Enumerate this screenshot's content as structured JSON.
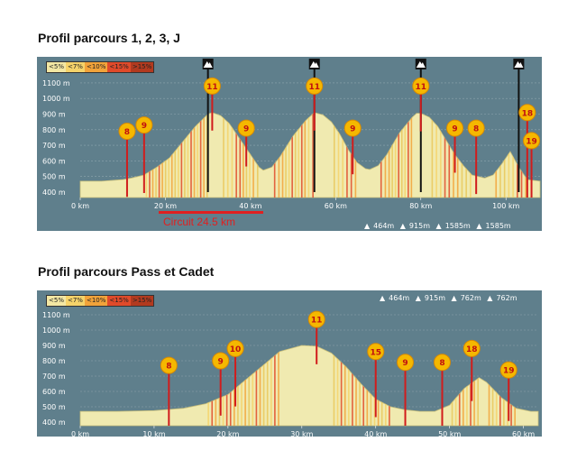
{
  "page": {
    "title1": "Profil parcours 1, 2, 3, J",
    "title2": "Profil parcours Pass et Cadet"
  },
  "legend": [
    {
      "label": "<5%",
      "color": "#f3e7a3"
    },
    {
      "label": "<7%",
      "color": "#f5d36a"
    },
    {
      "label": "<10%",
      "color": "#f2a33a"
    },
    {
      "label": "<15%",
      "color": "#e04a2a"
    },
    {
      "label": ">15%",
      "color": "#b23a1f"
    }
  ],
  "colors": {
    "panel": "#5f7f8c",
    "fill": "#f0eab0",
    "marker": "#f5b800",
    "stem": "#d11c1c",
    "grid": "#8fa6ae"
  },
  "icons": [
    "mountain-summit-icon"
  ],
  "chart_data": [
    {
      "type": "area",
      "title": "Profil parcours 1, 2, 3, J",
      "x_unit": "km",
      "y_unit": "m",
      "xlim": [
        0,
        108
      ],
      "ylim": [
        400,
        1150
      ],
      "y_ticks": [
        "1100 m",
        "1000 m",
        "900 m",
        "800 m",
        "700 m",
        "600 m",
        "500 m",
        "400 m"
      ],
      "x_ticks": [
        "0 km",
        "20 km",
        "40 km",
        "60 km",
        "80 km",
        "100 km"
      ],
      "x_tick_values": [
        0,
        20,
        40,
        60,
        80,
        100
      ],
      "x": [
        0,
        5,
        10,
        12,
        15,
        18,
        21,
        24,
        27,
        30,
        31,
        33,
        35,
        37,
        40,
        42,
        43,
        45,
        47,
        50,
        53,
        55,
        57,
        59,
        61,
        63,
        65,
        67,
        68,
        70,
        72,
        75,
        78,
        79,
        80,
        82,
        84,
        86,
        88,
        90,
        92,
        95,
        97,
        99,
        101,
        103,
        105,
        108
      ],
      "y": [
        470,
        470,
        480,
        490,
        510,
        560,
        620,
        720,
        820,
        900,
        910,
        890,
        840,
        760,
        640,
        560,
        540,
        560,
        630,
        760,
        860,
        910,
        895,
        850,
        770,
        670,
        590,
        550,
        545,
        570,
        640,
        780,
        880,
        905,
        905,
        880,
        820,
        730,
        640,
        570,
        510,
        490,
        510,
        580,
        660,
        560,
        480,
        470
      ],
      "summits_km": [
        30,
        55,
        80,
        103
      ],
      "markers": [
        {
          "label": "8",
          "km": 11,
          "m": 790
        },
        {
          "label": "9",
          "km": 15,
          "m": 830
        },
        {
          "label": "11",
          "km": 31,
          "m": 1080
        },
        {
          "label": "9",
          "km": 39,
          "m": 810
        },
        {
          "label": "11",
          "km": 55,
          "m": 1080
        },
        {
          "label": "9",
          "km": 64,
          "m": 810
        },
        {
          "label": "11",
          "km": 80,
          "m": 1080
        },
        {
          "label": "9",
          "km": 88,
          "m": 810
        },
        {
          "label": "8",
          "km": 93,
          "m": 810
        },
        {
          "label": "18",
          "km": 105,
          "m": 910
        },
        {
          "label": "19",
          "km": 106,
          "m": 730
        }
      ],
      "circuit": {
        "label": "Circuit 24.5 km",
        "from_km": 17,
        "to_km": 41
      },
      "stats": [
        {
          "icon": "mountain-icon",
          "value": "464m"
        },
        {
          "icon": "mountain-icon",
          "value": "915m"
        },
        {
          "icon": "mountain-icon",
          "value": "1585m"
        },
        {
          "icon": "mountain-icon",
          "value": "1585m"
        }
      ]
    },
    {
      "type": "area",
      "title": "Profil parcours Pass et Cadet",
      "x_unit": "km",
      "y_unit": "m",
      "xlim": [
        0,
        62
      ],
      "ylim": [
        400,
        1150
      ],
      "y_ticks": [
        "1100 m",
        "1000 m",
        "900 m",
        "800 m",
        "700 m",
        "600 m",
        "500 m",
        "400 m"
      ],
      "x_ticks": [
        "0 km",
        "10 km",
        "20 km",
        "30 km",
        "40 km",
        "50 km",
        "60 km"
      ],
      "x_tick_values": [
        0,
        10,
        20,
        30,
        40,
        50,
        60
      ],
      "x": [
        0,
        5,
        10,
        14,
        17,
        20,
        22,
        25,
        27,
        30,
        32,
        34,
        36,
        38,
        40,
        42,
        44,
        46,
        48,
        50,
        52,
        54,
        55,
        57,
        59,
        61,
        62
      ],
      "y": [
        470,
        470,
        475,
        490,
        520,
        580,
        660,
        780,
        860,
        900,
        895,
        850,
        760,
        650,
        550,
        500,
        480,
        470,
        470,
        510,
        620,
        690,
        660,
        560,
        490,
        470,
        470
      ],
      "markers": [
        {
          "label": "8",
          "km": 12,
          "m": 770
        },
        {
          "label": "9",
          "km": 19,
          "m": 800
        },
        {
          "label": "10",
          "km": 21,
          "m": 880
        },
        {
          "label": "11",
          "km": 32,
          "m": 1070
        },
        {
          "label": "15",
          "km": 40,
          "m": 860
        },
        {
          "label": "9",
          "km": 44,
          "m": 790
        },
        {
          "label": "8",
          "km": 49,
          "m": 790
        },
        {
          "label": "18",
          "km": 53,
          "m": 880
        },
        {
          "label": "19",
          "km": 58,
          "m": 740
        }
      ],
      "stats": [
        {
          "icon": "mountain-icon",
          "value": "464m"
        },
        {
          "icon": "mountain-icon",
          "value": "915m"
        },
        {
          "icon": "mountain-icon",
          "value": "762m"
        },
        {
          "icon": "mountain-icon",
          "value": "762m"
        }
      ]
    }
  ]
}
